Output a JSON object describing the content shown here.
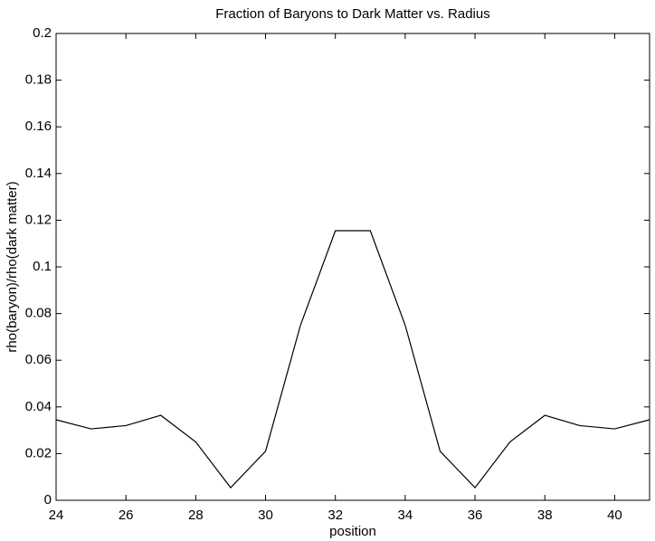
{
  "chart_data": {
    "type": "line",
    "title": "Fraction of Baryons to Dark Matter vs. Radius",
    "x_label": "position",
    "y_label": "rho(baryon)/rho(dark matter)",
    "x": [
      24,
      25,
      26,
      27,
      28,
      29,
      30,
      31,
      32,
      33,
      34,
      35,
      36,
      37,
      38,
      39,
      40,
      41
    ],
    "series": [
      {
        "color": "#000000",
        "values": [
          0.0345,
          0.0306,
          0.032,
          0.0364,
          0.025,
          0.0054,
          0.021,
          0.075,
          0.1155,
          0.1155,
          0.075,
          0.021,
          0.0054,
          0.025,
          0.0364,
          0.032,
          0.0306,
          0.0345
        ]
      }
    ],
    "xlim": [
      24,
      41
    ],
    "xticks": [
      24,
      26,
      28,
      30,
      32,
      34,
      36,
      38,
      40
    ],
    "ylim": [
      0,
      0.2
    ],
    "yticks": [
      0,
      0.02,
      0.04,
      0.06,
      0.08,
      0.1,
      0.12,
      0.14,
      0.16,
      0.18,
      0.2
    ],
    "grid": false
  }
}
